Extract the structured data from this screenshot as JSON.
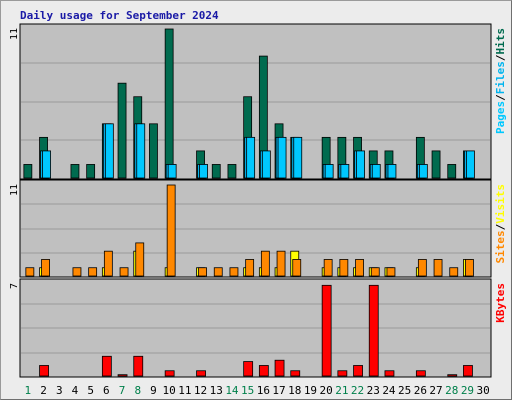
{
  "title": "Daily usage for September 2024",
  "colors": {
    "hits": "#006b4f",
    "files": "#00b4ee",
    "pages": "#00c8ff",
    "visits": "#ffff00",
    "sites": "#ff8800",
    "kbytes": "#ff0000",
    "panel_bg": "#c0c0c0",
    "weekend_label": "#00804b",
    "weekday_label": "#1a1aa6"
  },
  "chart_data": [
    {
      "type": "bar",
      "name": "hits-files-pages",
      "y_label_parts": [
        "Pages",
        "Files",
        "Hits"
      ],
      "ymax_label": "11",
      "ylim": [
        0,
        11
      ],
      "categories": [
        "1",
        "2",
        "3",
        "4",
        "5",
        "6",
        "7",
        "8",
        "9",
        "10",
        "11",
        "12",
        "13",
        "14",
        "15",
        "16",
        "17",
        "18",
        "19",
        "20",
        "21",
        "22",
        "23",
        "24",
        "25",
        "26",
        "27",
        "28",
        "29",
        "30"
      ],
      "series": [
        {
          "name": "Hits",
          "values": [
            1,
            3,
            0,
            1,
            1,
            4,
            7,
            6,
            4,
            11,
            0,
            2,
            1,
            1,
            6,
            9,
            4,
            3,
            0,
            3,
            3,
            3,
            2,
            2,
            0,
            3,
            2,
            1,
            2,
            0
          ]
        },
        {
          "name": "Files",
          "values": [
            0,
            2,
            0,
            0,
            0,
            4,
            0,
            4,
            0,
            1,
            0,
            1,
            0,
            0,
            3,
            2,
            3,
            3,
            0,
            1,
            1,
            2,
            1,
            1,
            0,
            1,
            0,
            0,
            2,
            0
          ]
        },
        {
          "name": "Pages",
          "values": [
            0,
            2,
            0,
            0,
            0,
            4,
            0,
            4,
            0,
            1,
            0,
            1,
            0,
            0,
            3,
            2,
            3,
            3,
            0,
            1,
            1,
            2,
            1,
            1,
            0,
            1,
            0,
            0,
            2,
            0
          ]
        }
      ]
    },
    {
      "type": "bar",
      "name": "visits-sites",
      "y_label_parts": [
        "Sites",
        "Visits"
      ],
      "ymax_label": "11",
      "ylim": [
        0,
        11
      ],
      "categories": [
        "1",
        "2",
        "3",
        "4",
        "5",
        "6",
        "7",
        "8",
        "9",
        "10",
        "11",
        "12",
        "13",
        "14",
        "15",
        "16",
        "17",
        "18",
        "19",
        "20",
        "21",
        "22",
        "23",
        "24",
        "25",
        "26",
        "27",
        "28",
        "29",
        "30"
      ],
      "series": [
        {
          "name": "Visits",
          "values": [
            0,
            1,
            0,
            0,
            0,
            1,
            0,
            3,
            0,
            1,
            0,
            1,
            0,
            0,
            1,
            1,
            1,
            3,
            0,
            1,
            1,
            1,
            1,
            1,
            0,
            1,
            0,
            0,
            2,
            0
          ]
        },
        {
          "name": "Sites",
          "values": [
            1,
            2,
            0,
            1,
            1,
            3,
            1,
            4,
            0,
            11,
            0,
            1,
            1,
            1,
            2,
            3,
            3,
            2,
            0,
            2,
            2,
            2,
            1,
            1,
            0,
            2,
            2,
            1,
            2,
            0
          ]
        }
      ]
    },
    {
      "type": "bar",
      "name": "kbytes",
      "y_label_parts": [
        "KBytes"
      ],
      "ymax_label": "7",
      "ylim": [
        0,
        7
      ],
      "categories": [
        "1",
        "2",
        "3",
        "4",
        "5",
        "6",
        "7",
        "8",
        "9",
        "10",
        "11",
        "12",
        "13",
        "14",
        "15",
        "16",
        "17",
        "18",
        "19",
        "20",
        "21",
        "22",
        "23",
        "24",
        "25",
        "26",
        "27",
        "28",
        "29",
        "30"
      ],
      "series": [
        {
          "name": "KBytes",
          "values": [
            0,
            0.8,
            0,
            0,
            0,
            1.5,
            0.1,
            1.5,
            0,
            0.4,
            0,
            0.4,
            0,
            0,
            1.1,
            0.8,
            1.2,
            0.4,
            0,
            6.9,
            0.4,
            0.8,
            6.9,
            0.4,
            0,
            0.4,
            0,
            0.1,
            0.8,
            0
          ]
        }
      ]
    }
  ]
}
